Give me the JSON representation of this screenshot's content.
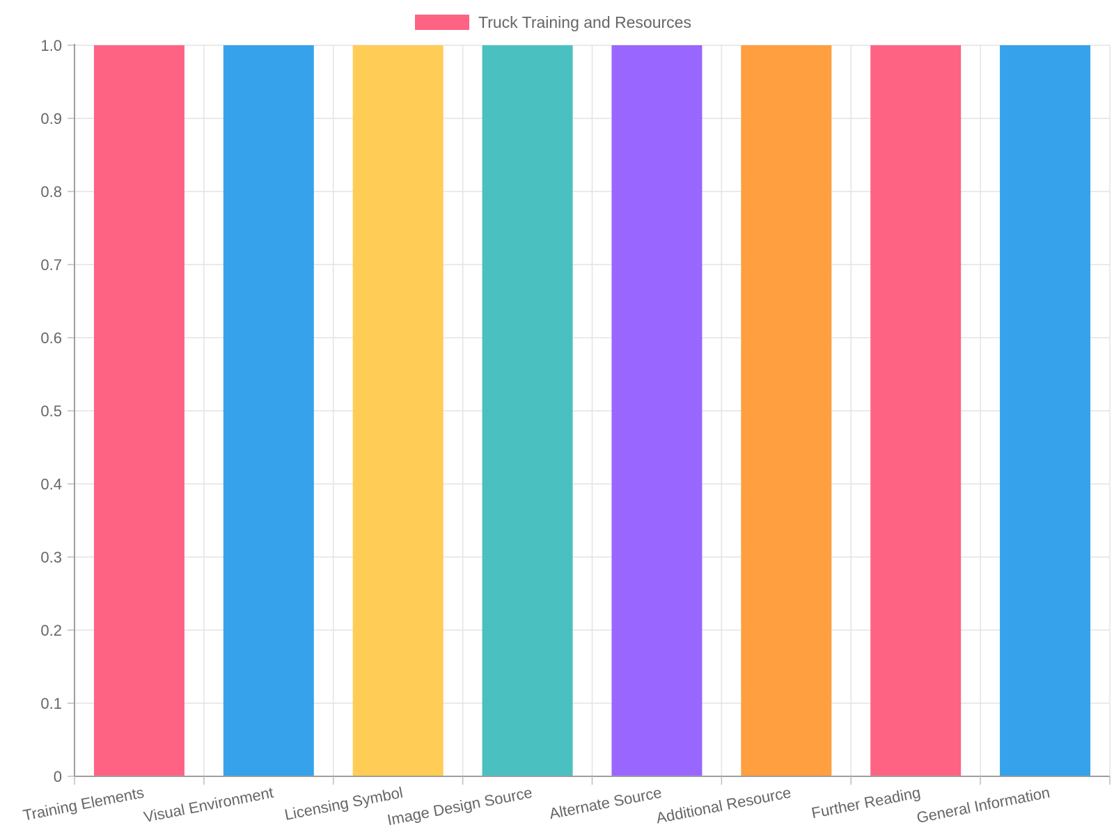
{
  "chart_data": {
    "type": "bar",
    "categories": [
      "Training Elements",
      "Visual Environment",
      "Licensing Symbol",
      "Image Design Source",
      "Alternate Source",
      "Additional Resource",
      "Further Reading",
      "General Information"
    ],
    "series": [
      {
        "name": "Truck Training and Resources",
        "values": [
          1,
          1,
          1,
          1,
          1,
          1,
          1,
          1
        ]
      }
    ],
    "bar_colors": [
      "#ff6384",
      "#36a2eb",
      "#ffcd56",
      "#4bc0c0",
      "#9966ff",
      "#ff9f40",
      "#ff6384",
      "#36a2eb"
    ],
    "ylim": [
      0,
      1
    ],
    "yticks": [
      "0",
      "0.1",
      "0.2",
      "0.3",
      "0.4",
      "0.5",
      "0.6",
      "0.7",
      "0.8",
      "0.9",
      "1.0"
    ],
    "grid": true,
    "legend_position": "top-center",
    "title": "",
    "xlabel": "",
    "ylabel": ""
  }
}
